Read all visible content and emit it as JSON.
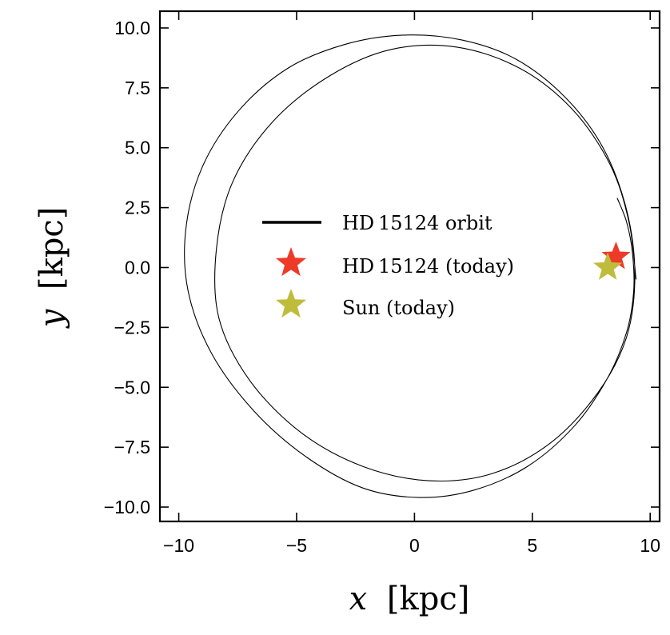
{
  "chart_data": {
    "type": "scatter",
    "xlabel": {
      "var": "x",
      "unit": "[kpc]"
    },
    "ylabel": {
      "var": "y",
      "unit": "[kpc]"
    },
    "xlim": [
      -10.8,
      10.4
    ],
    "ylim": [
      -10.6,
      10.7
    ],
    "xticks": [
      -10,
      -5,
      0,
      5,
      10
    ],
    "yticks": [
      -10.0,
      -7.5,
      -5.0,
      -2.5,
      0.0,
      2.5,
      5.0,
      7.5,
      10.0
    ],
    "xtick_labels": [
      "−10",
      "−5",
      "0",
      "5",
      "10"
    ],
    "ytick_labels": [
      "−10.0",
      "−7.5",
      "−5.0",
      "−2.5",
      "0.0",
      "2.5",
      "5.0",
      "7.5",
      "10.0"
    ],
    "grid": false,
    "legend": "center",
    "orbit": {
      "name": "HD 15124 orbit",
      "color": "#000000",
      "points": [
        [
          8.6,
          2.9
        ],
        [
          9.0,
          1.9
        ],
        [
          9.25,
          0.6
        ],
        [
          9.3,
          -1.0
        ],
        [
          9.0,
          -2.7
        ],
        [
          8.2,
          -4.6
        ],
        [
          6.8,
          -6.6
        ],
        [
          4.8,
          -8.3
        ],
        [
          2.5,
          -9.3
        ],
        [
          0.2,
          -9.6
        ],
        [
          -2.2,
          -9.2
        ],
        [
          -4.6,
          -7.9
        ],
        [
          -6.8,
          -6.0
        ],
        [
          -8.6,
          -3.6
        ],
        [
          -9.6,
          -1.0
        ],
        [
          -9.7,
          1.6
        ],
        [
          -9.0,
          4.2
        ],
        [
          -7.5,
          6.5
        ],
        [
          -5.4,
          8.3
        ],
        [
          -3.0,
          9.3
        ],
        [
          -0.5,
          9.7
        ],
        [
          2.0,
          9.5
        ],
        [
          4.3,
          8.7
        ],
        [
          6.4,
          7.1
        ],
        [
          8.0,
          5.0
        ],
        [
          9.0,
          2.4
        ],
        [
          9.35,
          -0.3
        ],
        [
          9.0,
          -2.9
        ],
        [
          7.8,
          -5.2
        ],
        [
          5.8,
          -7.3
        ],
        [
          3.3,
          -8.6
        ],
        [
          0.6,
          -8.9
        ],
        [
          -2.2,
          -8.3
        ],
        [
          -4.8,
          -6.9
        ],
        [
          -7.0,
          -4.7
        ],
        [
          -8.3,
          -2.1
        ],
        [
          -8.4,
          0.8
        ],
        [
          -7.7,
          3.6
        ],
        [
          -6.0,
          6.1
        ],
        [
          -3.6,
          8.0
        ],
        [
          -1.0,
          9.1
        ],
        [
          1.8,
          9.2
        ],
        [
          4.5,
          8.3
        ],
        [
          6.7,
          6.6
        ],
        [
          8.3,
          4.3
        ],
        [
          9.1,
          1.9
        ],
        [
          9.4,
          -0.5
        ]
      ]
    },
    "points": [
      {
        "name": "HD 15124 (today)",
        "x": 8.55,
        "y": 0.45,
        "color": "#ee3a29"
      },
      {
        "name": "Sun (today)",
        "x": 8.2,
        "y": 0.0,
        "color": "#bfbc3c"
      }
    ]
  }
}
